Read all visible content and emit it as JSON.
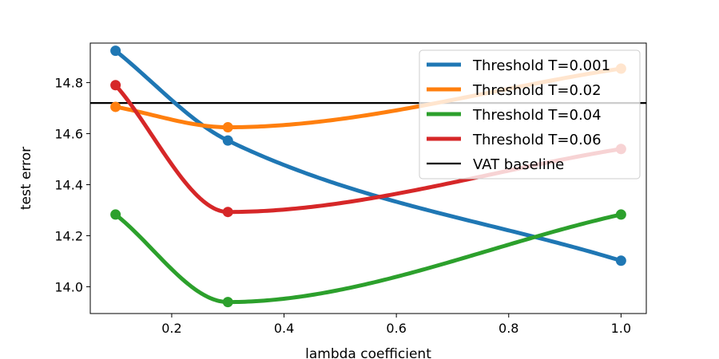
{
  "chart_data": {
    "type": "line",
    "title": "",
    "xlabel": "lambda coefficient",
    "ylabel": "test error",
    "xlim": [
      0.055,
      1.045
    ],
    "ylim": [
      13.895,
      14.955
    ],
    "x_ticks": [
      0.2,
      0.4,
      0.6,
      0.8,
      1.0
    ],
    "x_tick_labels": [
      "0.2",
      "0.4",
      "0.6",
      "0.8",
      "1.0"
    ],
    "y_ticks": [
      14.0,
      14.2,
      14.4,
      14.6,
      14.8
    ],
    "y_tick_labels": [
      "14.0",
      "14.2",
      "14.4",
      "14.6",
      "14.8"
    ],
    "x": [
      0.1,
      0.3,
      1.0
    ],
    "series": [
      {
        "name": "Threshold T=0.001",
        "color": "#1f77b4",
        "values": [
          14.925,
          14.573,
          14.102
        ]
      },
      {
        "name": "Threshold T=0.02",
        "color": "#ff7f0e",
        "values": [
          14.705,
          14.625,
          14.855
        ]
      },
      {
        "name": "Threshold T=0.04",
        "color": "#2ca02c",
        "values": [
          14.283,
          13.94,
          14.283
        ]
      },
      {
        "name": "Threshold T=0.06",
        "color": "#d62728",
        "values": [
          14.79,
          14.293,
          14.54
        ]
      }
    ],
    "baseline": {
      "name": "VAT baseline",
      "color": "#000000",
      "value": 14.72
    },
    "legend_position": "top-right",
    "grid": false
  }
}
